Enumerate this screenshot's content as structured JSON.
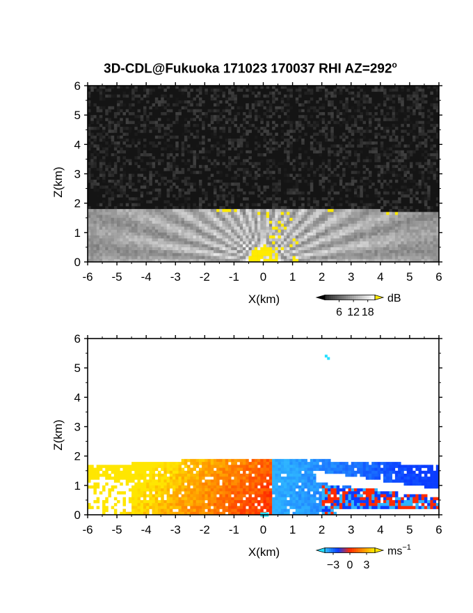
{
  "title": "3D-CDL@Fukuoka 171023 170037 RHI AZ=292",
  "title_sup": "o",
  "chart_data": [
    {
      "type": "heatmap",
      "name_hint": "reflectivity",
      "xlabel": "X(km)",
      "ylabel": "Z(km)",
      "xlim": [
        -6,
        6
      ],
      "ylim": [
        0,
        6
      ],
      "xticks": [
        "-6",
        "-5",
        "-4",
        "-3",
        "-2",
        "-1",
        "0",
        "1",
        "2",
        "3",
        "4",
        "5",
        "6"
      ],
      "yticks": [
        "0",
        "1",
        "2",
        "3",
        "4",
        "5",
        "6"
      ],
      "colorbar": {
        "unit": "dB",
        "ticks": [
          "6",
          "12",
          "18"
        ],
        "tick_values": [
          6,
          12,
          18
        ],
        "range": [
          0,
          21
        ]
      },
      "colors": {
        "background": "#141414",
        "low": "#505050",
        "high": "#ffffff",
        "saturated": "#ffeb00"
      },
      "features": {
        "layer_top_km": 1.8,
        "source_x_km": 0
      }
    },
    {
      "type": "heatmap",
      "name_hint": "doppler velocity",
      "xlabel": "X(km)",
      "ylabel": "Z(km)",
      "xlim": [
        -6,
        6
      ],
      "ylim": [
        0,
        6
      ],
      "xticks": [
        "-6",
        "-5",
        "-4",
        "-3",
        "-2",
        "-1",
        "0",
        "1",
        "2",
        "3",
        "4",
        "5",
        "6"
      ],
      "yticks": [
        "0",
        "1",
        "2",
        "3",
        "4",
        "5",
        "6"
      ],
      "colorbar": {
        "unit": "ms",
        "unit_sup": "−1",
        "ticks": [
          "−3",
          "0",
          "3"
        ],
        "tick_values": [
          -3,
          0,
          3
        ],
        "range": [
          -4.5,
          4.5
        ]
      },
      "colors": {
        "negative": "#0a3cff",
        "near_zero_neg": "#2eb4ff",
        "zero": "#ff2a00",
        "positive": "#ffe600"
      },
      "features": {
        "layer_top_km": 1.9,
        "sign_change_x_km": 0.3
      }
    }
  ]
}
